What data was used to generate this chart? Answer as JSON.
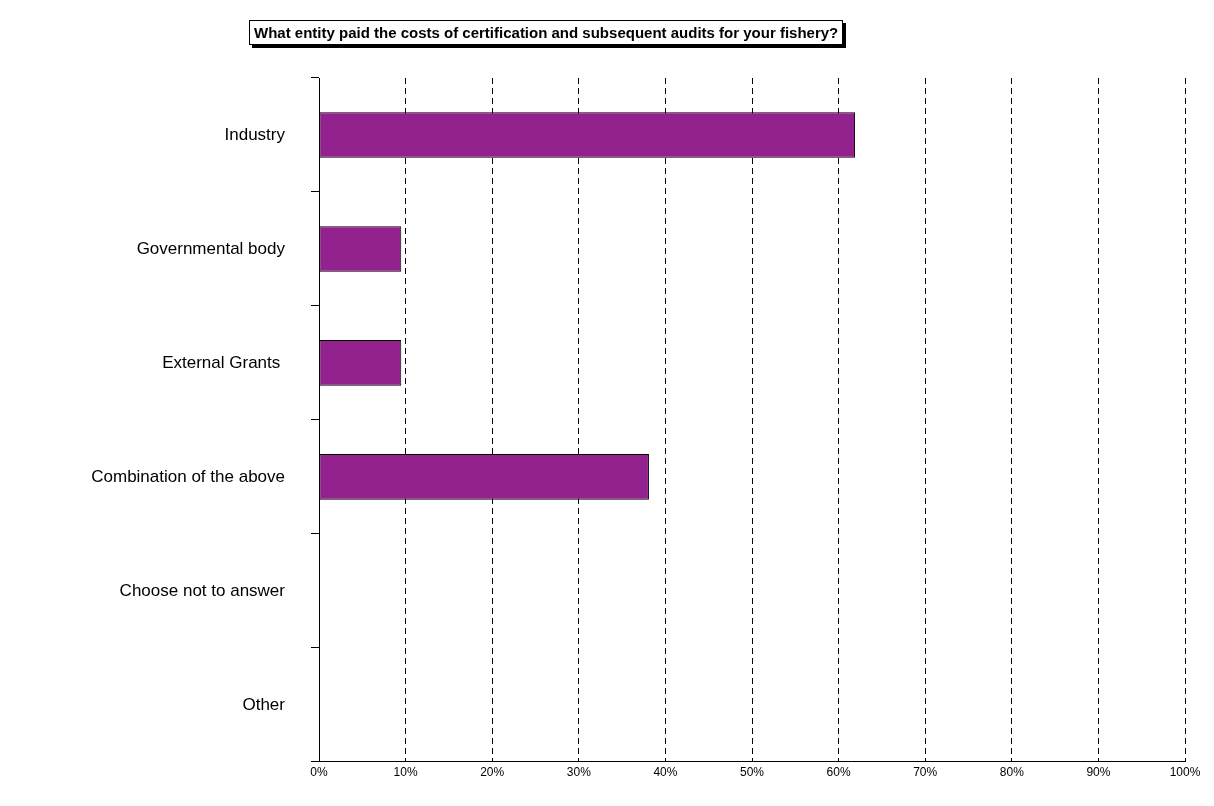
{
  "chart_data": {
    "type": "bar",
    "orientation": "horizontal",
    "title": "What entity paid the costs of certification and subsequent audits for your fishery?",
    "categories": [
      "Industry",
      "Governmental body",
      "External Grants ",
      "Combination of the above",
      "Choose not to answer",
      "Other"
    ],
    "values": [
      61.9,
      9.5,
      9.5,
      38.1,
      0,
      0
    ],
    "color": "#93228f",
    "xlim": [
      0,
      100
    ],
    "xticks": [
      {
        "value": 0,
        "label": "0%"
      },
      {
        "value": 10,
        "label": "10%"
      },
      {
        "value": 20,
        "label": "20%"
      },
      {
        "value": 30,
        "label": "30%"
      },
      {
        "value": 40,
        "label": "40%"
      },
      {
        "value": 50,
        "label": "50%"
      },
      {
        "value": 60,
        "label": "60%"
      },
      {
        "value": 70,
        "label": "70%"
      },
      {
        "value": 80,
        "label": "80%"
      },
      {
        "value": 90,
        "label": "90%"
      },
      {
        "value": 100,
        "label": "100%"
      }
    ],
    "grid": "x",
    "legend": false
  }
}
